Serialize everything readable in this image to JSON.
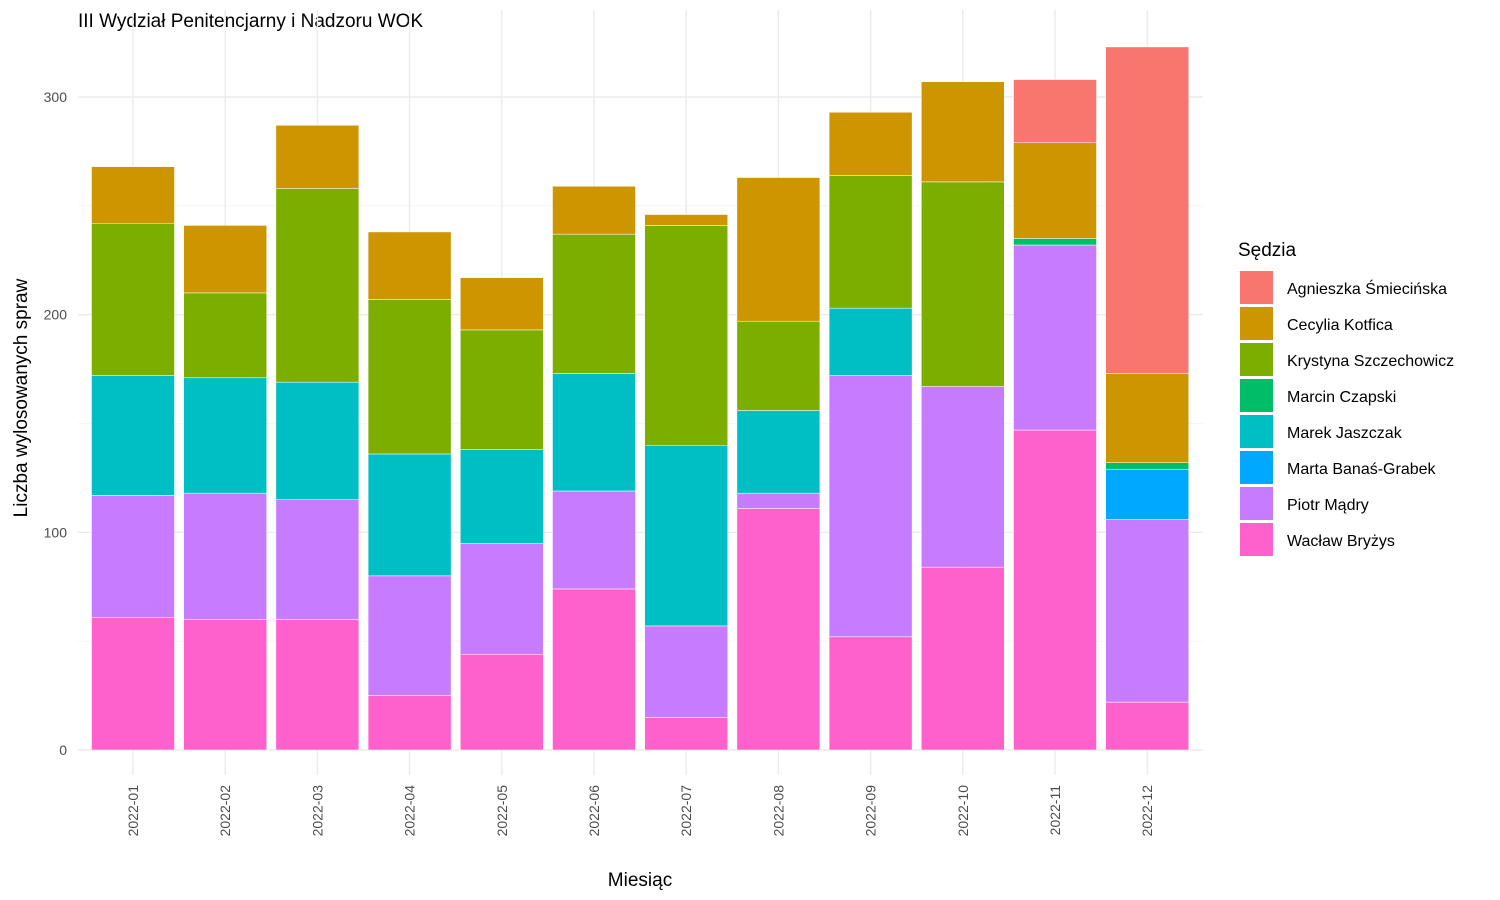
{
  "chart_data": {
    "type": "bar",
    "stacked": true,
    "title": "III Wydział Penitencjarny i Nadzoru WOK",
    "xlabel": "Miesiąc",
    "ylabel": "Liczba wylosowanych spraw",
    "ylim": [
      0,
      330
    ],
    "yticks": [
      0,
      100,
      200,
      300
    ],
    "grid": true,
    "legend": {
      "title": "Sędzia",
      "position": "right"
    },
    "categories": [
      "2022-01",
      "2022-02",
      "2022-03",
      "2022-04",
      "2022-05",
      "2022-06",
      "2022-07",
      "2022-08",
      "2022-09",
      "2022-10",
      "2022-11",
      "2022-12"
    ],
    "series": [
      {
        "name": "Agnieszka Śmiecińska",
        "color": "#F8766D",
        "values": [
          0,
          0,
          0,
          0,
          0,
          0,
          0,
          0,
          0,
          0,
          29,
          150
        ]
      },
      {
        "name": "Cecylia Kotfica",
        "color": "#CD9600",
        "values": [
          26,
          31,
          29,
          31,
          24,
          22,
          5,
          66,
          29,
          46,
          44,
          41
        ]
      },
      {
        "name": "Krystyna Szczechowicz",
        "color": "#7CAE00",
        "values": [
          70,
          39,
          89,
          71,
          55,
          64,
          101,
          41,
          61,
          94,
          0,
          0
        ]
      },
      {
        "name": "Marcin Czapski",
        "color": "#00BE67",
        "values": [
          0,
          0,
          0,
          0,
          0,
          0,
          0,
          0,
          0,
          0,
          3,
          3
        ]
      },
      {
        "name": "Marek Jaszczak",
        "color": "#00BFC4",
        "values": [
          55,
          53,
          54,
          56,
          43,
          54,
          83,
          38,
          31,
          0,
          0,
          0
        ]
      },
      {
        "name": "Marta Banaś-Grabek",
        "color": "#00A9FF",
        "values": [
          0,
          0,
          0,
          0,
          0,
          0,
          0,
          0,
          0,
          0,
          0,
          23
        ]
      },
      {
        "name": "Piotr Mądry",
        "color": "#C77CFF",
        "values": [
          56,
          58,
          55,
          55,
          51,
          45,
          42,
          7,
          120,
          83,
          85,
          84
        ]
      },
      {
        "name": "Wacław Bryżys",
        "color": "#FF61CC",
        "values": [
          61,
          60,
          60,
          25,
          44,
          74,
          15,
          111,
          52,
          84,
          147,
          22
        ]
      }
    ]
  }
}
